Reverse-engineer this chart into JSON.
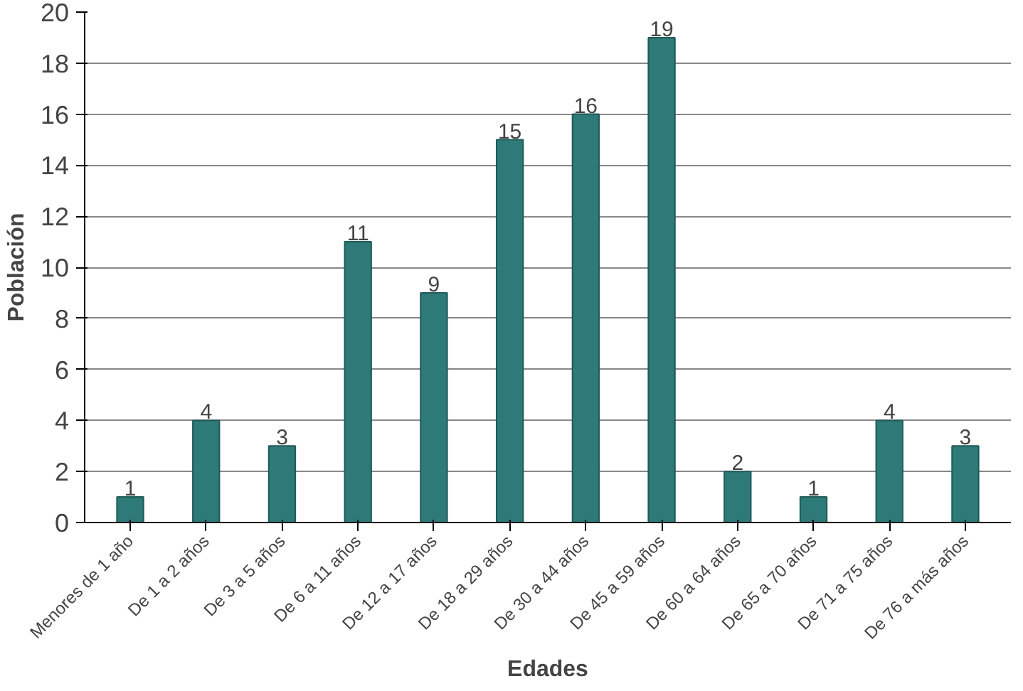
{
  "chart_data": {
    "type": "bar",
    "xlabel": "Edades",
    "ylabel": "Población",
    "categories": [
      "Menores de 1 año",
      "De 1 a 2 años",
      "De 3 a 5 años",
      "De 6 a 11 años",
      "De 12 a 17 años",
      "De 18 a 29 años",
      "De 30 a 44 años",
      "De 45 a 59 años",
      "De 60 a 64 años",
      "De 65 a 70 años",
      "De 71 a 75 años",
      "De 76 a más años"
    ],
    "values": [
      1,
      4,
      3,
      11,
      9,
      15,
      16,
      19,
      2,
      1,
      4,
      3
    ],
    "color": "#2e7a78",
    "ylim": [
      0,
      20
    ],
    "yticks": [
      0,
      2,
      4,
      6,
      8,
      10,
      12,
      14,
      16,
      18,
      20
    ],
    "grid": "y",
    "data_labels": true
  }
}
